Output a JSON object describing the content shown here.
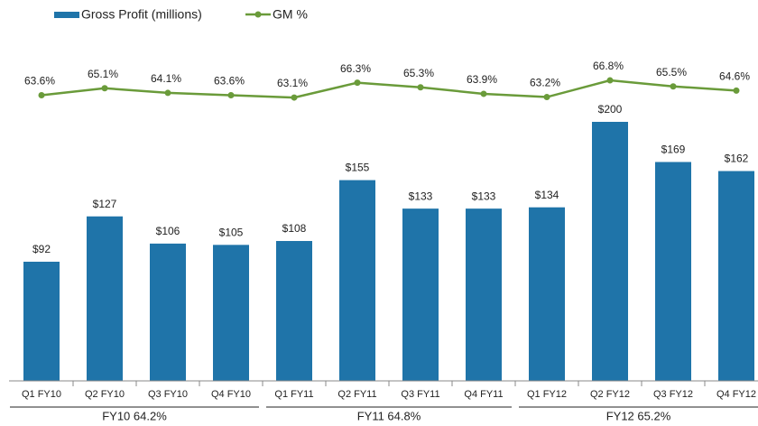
{
  "chart_data": {
    "type": "bar",
    "categories": [
      "Q1 FY10",
      "Q2 FY10",
      "Q3 FY10",
      "Q4 FY10",
      "Q1 FY11",
      "Q2 FY11",
      "Q3 FY11",
      "Q4 FY11",
      "Q1 FY12",
      "Q2 FY12",
      "Q3 FY12",
      "Q4 FY12"
    ],
    "series": [
      {
        "name": "Gross Profit (millions)",
        "type": "bar",
        "color": "#1f74a9",
        "values": [
          92,
          127,
          106,
          105,
          108,
          155,
          133,
          133,
          134,
          200,
          169,
          162
        ],
        "value_labels": [
          "$92",
          "$127",
          "$106",
          "$105",
          "$108",
          "$155",
          "$133",
          "$133",
          "$134",
          "$200",
          "$169",
          "$162"
        ]
      },
      {
        "name": "GM %",
        "type": "line",
        "color": "#6a9b3a",
        "values": [
          63.6,
          65.1,
          64.1,
          63.6,
          63.1,
          66.3,
          65.3,
          63.9,
          63.2,
          66.8,
          65.5,
          64.6
        ],
        "value_labels": [
          "63.6%",
          "65.1%",
          "64.1%",
          "63.6%",
          "63.1%",
          "66.3%",
          "65.3%",
          "63.9%",
          "63.2%",
          "66.8%",
          "65.5%",
          "64.6%"
        ]
      }
    ],
    "groups": [
      "FY10  64.2%",
      "FY11  64.8%",
      "FY12  65.2%"
    ],
    "legend": "top-left"
  }
}
